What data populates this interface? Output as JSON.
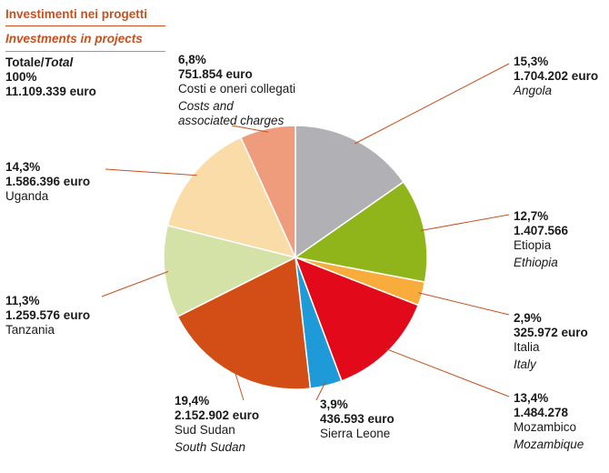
{
  "header": {
    "title": "Investimenti nei progetti",
    "subtitle": "Investments in projects"
  },
  "total": {
    "label_it": "Totale/",
    "label_en": "Total",
    "pct": "100%",
    "amount": "11.109.339 euro"
  },
  "chart_data": {
    "type": "pie",
    "title": "Investimenti nei progetti",
    "subtitle": "Investments in projects",
    "total_pct": 100,
    "total_amount_eur": 11109339,
    "slices": [
      {
        "name_it": "Angola",
        "name_en": "Angola",
        "pct": 15.3,
        "pct_label": "15,3%",
        "amount": 1704202,
        "amount_label": "1.704.202 euro",
        "color": "#b1b1b5"
      },
      {
        "name_it": "Etiopia",
        "name_en": "Ethiopia",
        "pct": 12.7,
        "pct_label": "12,7%",
        "amount": 1407566,
        "amount_label": "1.407.566",
        "color": "#8fb51a"
      },
      {
        "name_it": "Italia",
        "name_en": "Italy",
        "pct": 2.9,
        "pct_label": "2,9%",
        "amount": 325972,
        "amount_label": "325.972 euro",
        "color": "#f7ac3b"
      },
      {
        "name_it": "Mozambico",
        "name_en": "Mozambique",
        "pct": 13.4,
        "pct_label": "13,4%",
        "amount": 1484278,
        "amount_label": "1.484.278",
        "color": "#e20a1a"
      },
      {
        "name_it": "Sierra Leone",
        "name_en": "",
        "pct": 3.9,
        "pct_label": "3,9%",
        "amount": 436593,
        "amount_label": "436.593 euro",
        "color": "#1e9ad8"
      },
      {
        "name_it": "Sud Sudan",
        "name_en": "South Sudan",
        "pct": 19.4,
        "pct_label": "19,4%",
        "amount": 2152902,
        "amount_label": "2.152.902 euro",
        "color": "#d24e16"
      },
      {
        "name_it": "Tanzania",
        "name_en": "",
        "pct": 11.3,
        "pct_label": "11,3%",
        "amount": 1259576,
        "amount_label": "1.259.576 euro",
        "color": "#d4e2a7"
      },
      {
        "name_it": "Uganda",
        "name_en": "",
        "pct": 14.3,
        "pct_label": "14,3%",
        "amount": 1586396,
        "amount_label": "1.586.396 euro",
        "color": "#f9dca7"
      },
      {
        "name_it": "Costi e oneri collegati",
        "name_en": "Costs and associated charges",
        "pct": 6.8,
        "pct_label": "6,8%",
        "amount": 751854,
        "amount_label": "751.854 euro",
        "color": "#ef9c7c"
      }
    ],
    "leader_color": "#c8501e"
  }
}
